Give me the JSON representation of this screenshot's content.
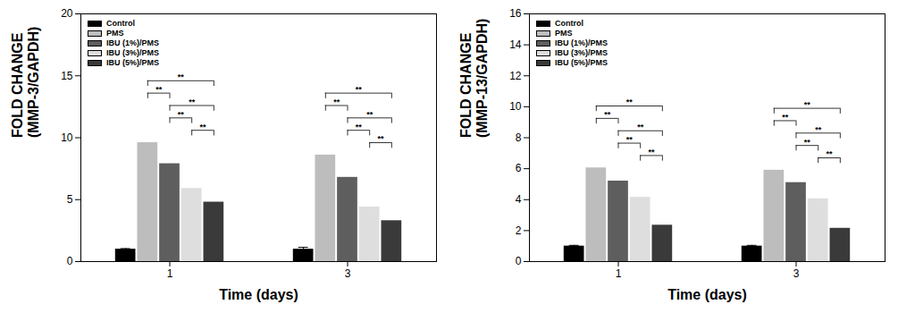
{
  "chart_data": [
    {
      "type": "bar",
      "x_label": "Time (days)",
      "y_label": "FOLD CHANGE\n(MMP-3/GAPDH)",
      "categories": [
        "1",
        "3"
      ],
      "ylim": [
        0,
        20
      ],
      "yticks": [
        0,
        5,
        10,
        15,
        20
      ],
      "grid": false,
      "legend": "upper left",
      "series": [
        {
          "name": "Control",
          "color": "#000000",
          "values": [
            1,
            1
          ],
          "errors": [
            0.05,
            0.15
          ]
        },
        {
          "name": "PMS",
          "color": "#bdbdbd",
          "values": [
            9.6,
            8.6
          ]
        },
        {
          "name": "IBU (1%)/PMS",
          "color": "#5e5e5e",
          "values": [
            7.9,
            6.8
          ]
        },
        {
          "name": "IBU (3%)/PMS",
          "color": "#dedede",
          "values": [
            5.9,
            4.4
          ]
        },
        {
          "name": "IBU (5%)/PMS",
          "color": "#3a3a3a",
          "values": [
            4.8,
            3.3
          ]
        }
      ],
      "brackets": [
        {
          "day": "1",
          "from": "IBU (3%)/PMS",
          "to": "IBU (5%)/PMS",
          "text": "**"
        },
        {
          "day": "1",
          "from": "IBU (1%)/PMS",
          "to": "IBU (3%)/PMS",
          "text": "**"
        },
        {
          "day": "1",
          "from": "IBU (1%)/PMS",
          "to": "IBU (5%)/PMS",
          "text": "**"
        },
        {
          "day": "1",
          "from": "PMS",
          "to": "IBU (1%)/PMS",
          "text": "**"
        },
        {
          "day": "1",
          "from": "PMS",
          "to": "IBU (5%)/PMS",
          "text": "**"
        },
        {
          "day": "3",
          "from": "IBU (3%)/PMS",
          "to": "IBU (5%)/PMS",
          "text": "**"
        },
        {
          "day": "3",
          "from": "IBU (1%)/PMS",
          "to": "IBU (3%)/PMS",
          "text": "**"
        },
        {
          "day": "3",
          "from": "IBU (1%)/PMS",
          "to": "IBU (5%)/PMS",
          "text": "**"
        },
        {
          "day": "3",
          "from": "PMS",
          "to": "IBU (1%)/PMS",
          "text": "**"
        },
        {
          "day": "3",
          "from": "PMS",
          "to": "IBU (5%)/PMS",
          "text": "**"
        }
      ]
    },
    {
      "type": "bar",
      "x_label": "Time (days)",
      "y_label": "FOLD CHANGE\n(MMP-13/GAPDH)",
      "categories": [
        "1",
        "3"
      ],
      "ylim": [
        0,
        16
      ],
      "yticks": [
        0,
        2,
        4,
        6,
        8,
        10,
        12,
        14,
        16
      ],
      "grid": false,
      "legend": "upper left",
      "series": [
        {
          "name": "Control",
          "color": "#000000",
          "values": [
            1,
            1
          ],
          "errors": [
            0.05,
            0.05
          ]
        },
        {
          "name": "PMS",
          "color": "#bdbdbd",
          "values": [
            6.05,
            5.9
          ]
        },
        {
          "name": "IBU (1%)/PMS",
          "color": "#5e5e5e",
          "values": [
            5.2,
            5.1
          ]
        },
        {
          "name": "IBU (3%)/PMS",
          "color": "#dedede",
          "values": [
            4.15,
            4.05
          ]
        },
        {
          "name": "IBU (5%)/PMS",
          "color": "#3a3a3a",
          "values": [
            2.35,
            2.15
          ]
        }
      ],
      "brackets": [
        {
          "day": "1",
          "from": "IBU (3%)/PMS",
          "to": "IBU (5%)/PMS",
          "text": "**"
        },
        {
          "day": "1",
          "from": "IBU (1%)/PMS",
          "to": "IBU (3%)/PMS",
          "text": "**"
        },
        {
          "day": "1",
          "from": "IBU (1%)/PMS",
          "to": "IBU (5%)/PMS",
          "text": "**"
        },
        {
          "day": "1",
          "from": "PMS",
          "to": "IBU (1%)/PMS",
          "text": "**"
        },
        {
          "day": "1",
          "from": "PMS",
          "to": "IBU (5%)/PMS",
          "text": "**"
        },
        {
          "day": "3",
          "from": "IBU (3%)/PMS",
          "to": "IBU (5%)/PMS",
          "text": "**"
        },
        {
          "day": "3",
          "from": "IBU (1%)/PMS",
          "to": "IBU (3%)/PMS",
          "text": "**"
        },
        {
          "day": "3",
          "from": "IBU (1%)/PMS",
          "to": "IBU (5%)/PMS",
          "text": "**"
        },
        {
          "day": "3",
          "from": "PMS",
          "to": "IBU (1%)/PMS",
          "text": "**"
        },
        {
          "day": "3",
          "from": "PMS",
          "to": "IBU (5%)/PMS",
          "text": "**"
        }
      ]
    }
  ]
}
